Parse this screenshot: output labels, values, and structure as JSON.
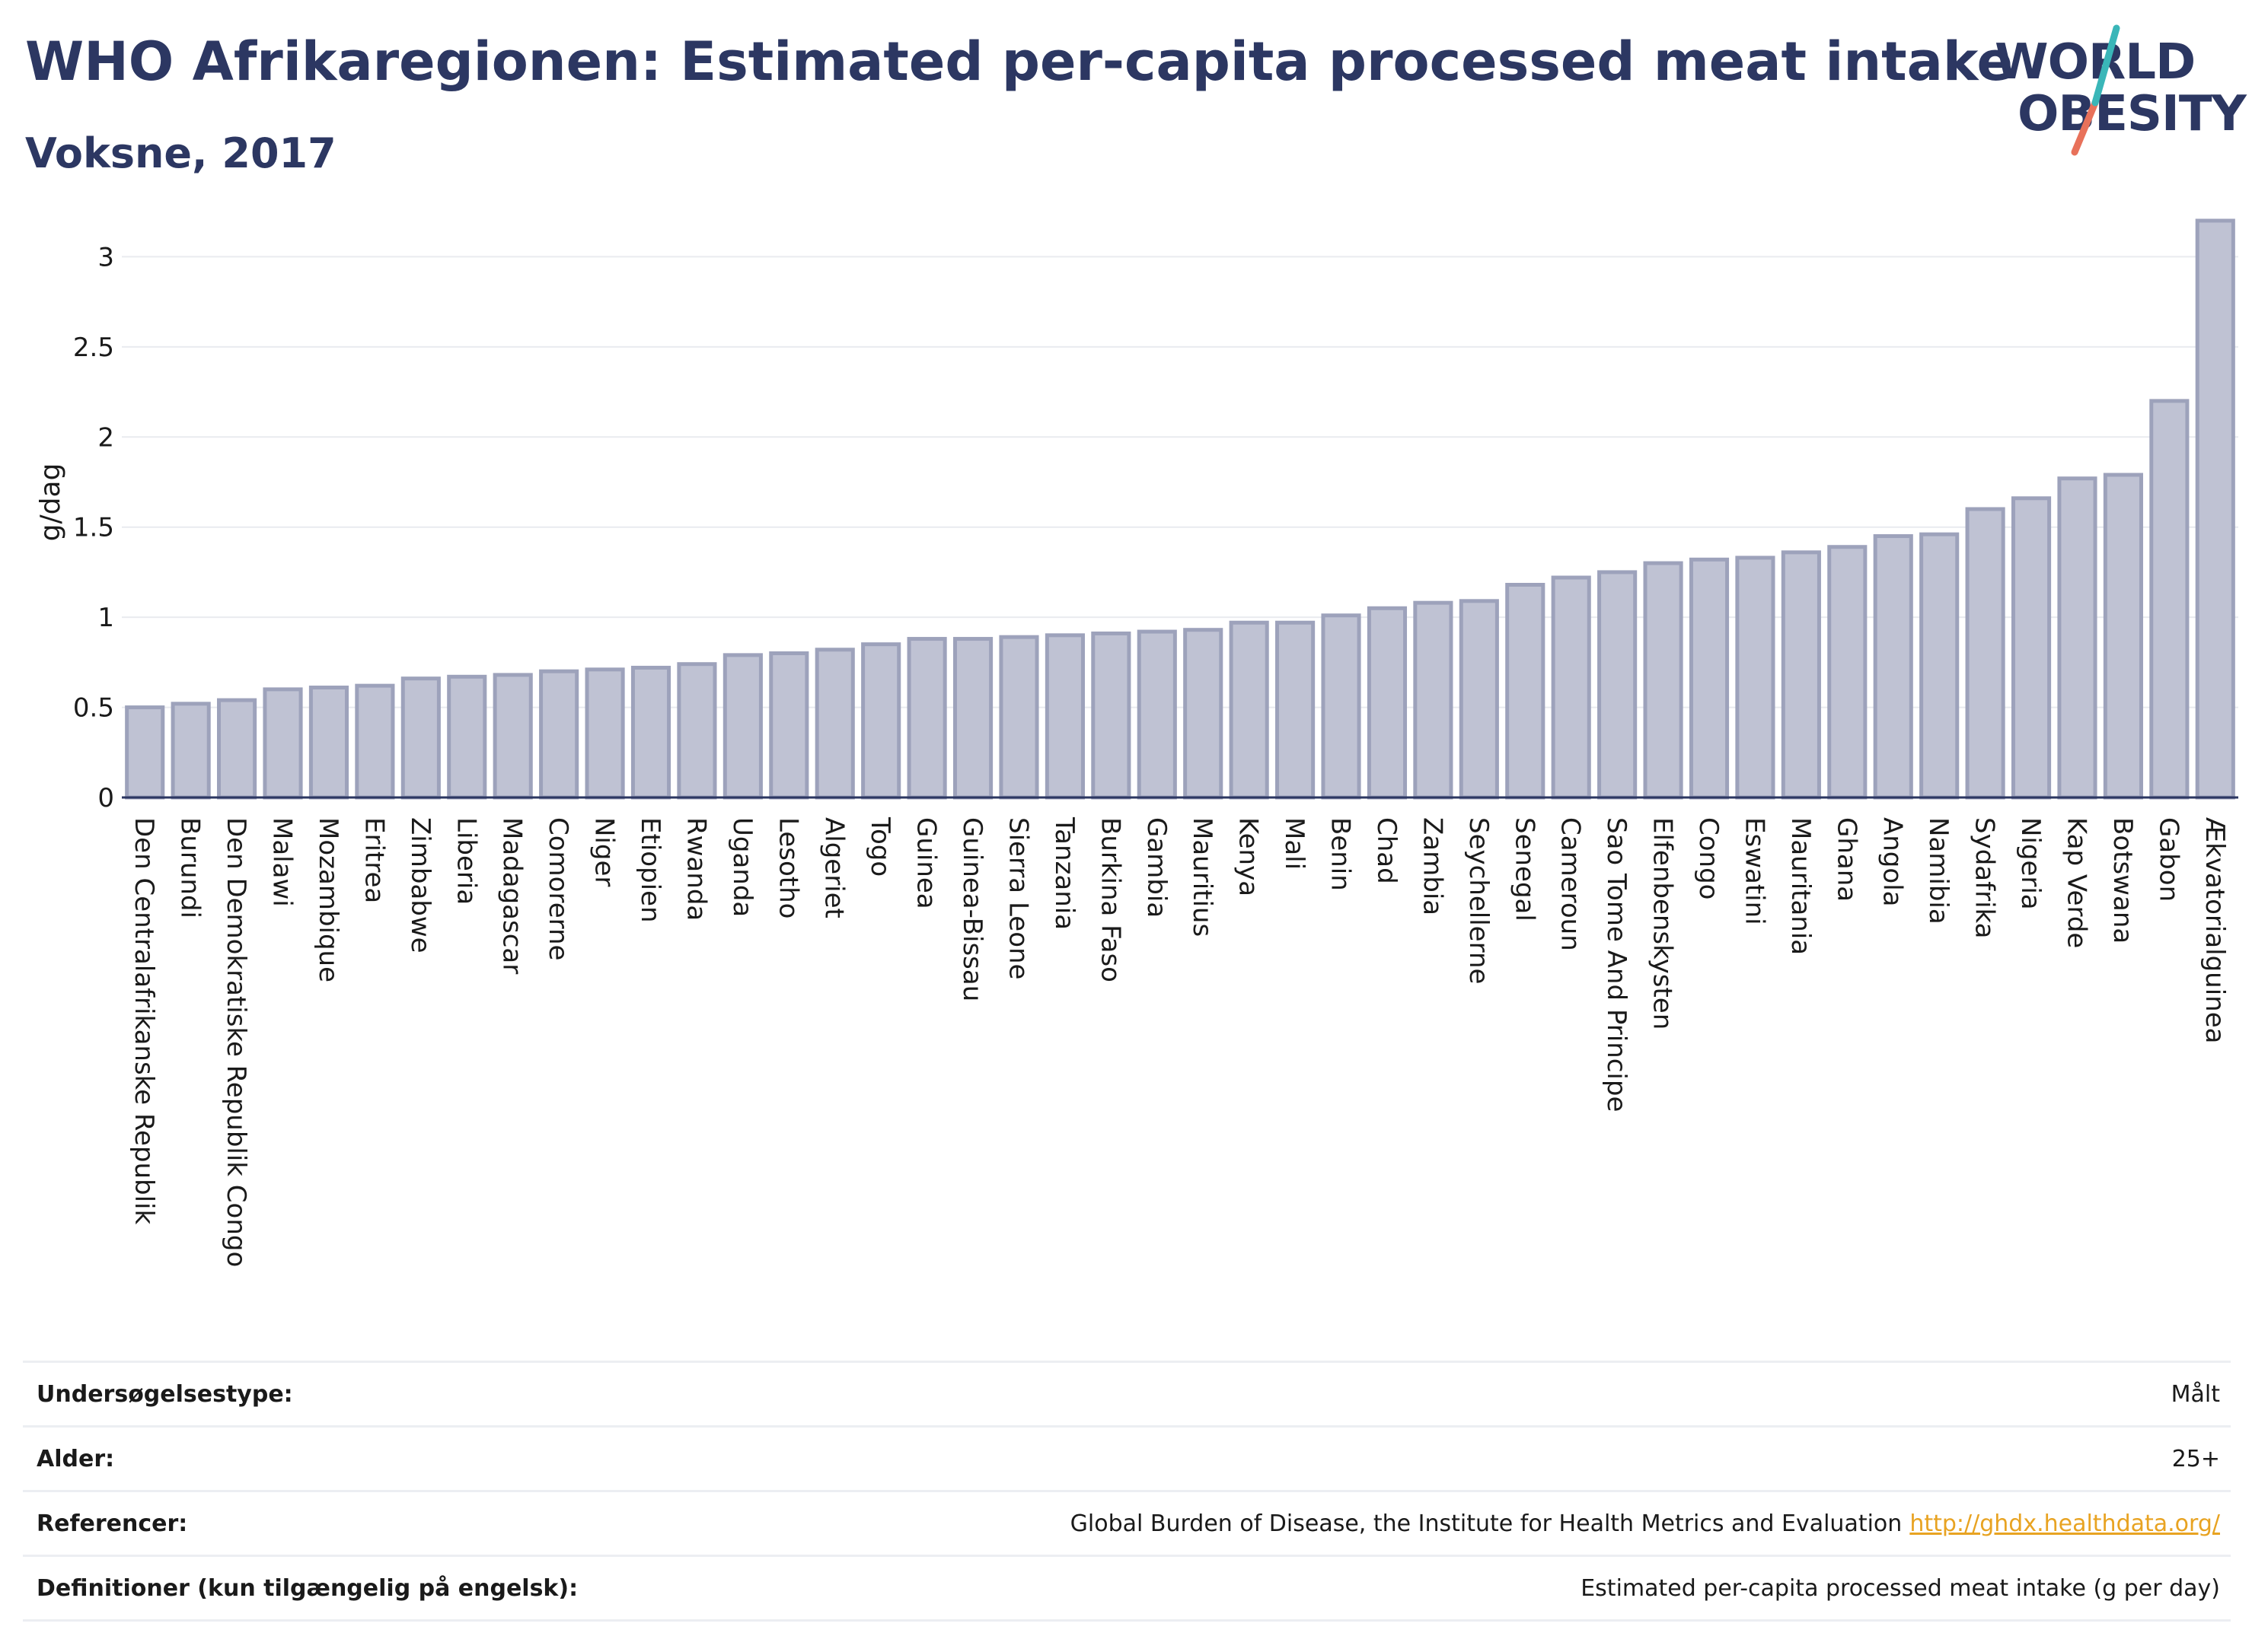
{
  "header": {
    "title": "WHO Afrikaregionen: Estimated per-capita processed meat intake",
    "subtitle": "Voksne, 2017"
  },
  "logo": {
    "line1": "WORLD",
    "line2": "OBESITY"
  },
  "colors": {
    "bar_fill": "#bfc2d3",
    "bar_stroke": "#9da2bb",
    "title": "#2c3762",
    "link": "#e8a322"
  },
  "chart_data": {
    "type": "bar",
    "title": "WHO Afrikaregionen: Estimated per-capita processed meat intake",
    "subtitle": "Voksne, 2017",
    "xlabel": "",
    "ylabel": "g/dag",
    "ylim": [
      0,
      3.2
    ],
    "yticks": [
      0,
      0.5,
      1,
      1.5,
      2,
      2.5,
      3
    ],
    "ytick_labels": [
      "0",
      "0.5",
      "1",
      "1.5",
      "2",
      "2.5",
      "3"
    ],
    "grid": true,
    "categories": [
      "Den Centralafrikanske Republik",
      "Burundi",
      "Den Demokratiske Republik Congo",
      "Malawi",
      "Mozambique",
      "Eritrea",
      "Zimbabwe",
      "Liberia",
      "Madagascar",
      "Comorerne",
      "Niger",
      "Etiopien",
      "Rwanda",
      "Uganda",
      "Lesotho",
      "Algeriet",
      "Togo",
      "Guinea",
      "Guinea-Bissau",
      "Sierra Leone",
      "Tanzania",
      "Burkina Faso",
      "Gambia",
      "Mauritius",
      "Kenya",
      "Mali",
      "Benin",
      "Chad",
      "Zambia",
      "Seychellerne",
      "Senegal",
      "Cameroun",
      "Sao Tome And Principe",
      "Elfenbenskysten",
      "Congo",
      "Eswatini",
      "Mauritania",
      "Ghana",
      "Angola",
      "Namibia",
      "Sydafrika",
      "Nigeria",
      "Kap Verde",
      "Botswana",
      "Gabon",
      "Ækvatorialguinea"
    ],
    "values": [
      0.5,
      0.52,
      0.54,
      0.6,
      0.61,
      0.62,
      0.66,
      0.67,
      0.68,
      0.7,
      0.71,
      0.72,
      0.74,
      0.79,
      0.8,
      0.82,
      0.85,
      0.88,
      0.88,
      0.89,
      0.9,
      0.91,
      0.92,
      0.93,
      0.97,
      0.97,
      1.01,
      1.05,
      1.08,
      1.09,
      1.18,
      1.22,
      1.25,
      1.3,
      1.32,
      1.33,
      1.36,
      1.39,
      1.45,
      1.46,
      1.6,
      1.66,
      1.77,
      1.79,
      2.2,
      3.2
    ]
  },
  "details": [
    {
      "label": "Undersøgelsestype:",
      "value": "Målt"
    },
    {
      "label": "Alder:",
      "value": "25+"
    },
    {
      "label": "Referencer:",
      "value": "Global Burden of Disease, the Institute for Health Metrics and Evaluation",
      "link": "http://ghdx.healthdata.org/"
    },
    {
      "label": "Definitioner (kun tilgængelig på engelsk):",
      "value": "Estimated per-capita processed meat intake (g per day)"
    }
  ]
}
